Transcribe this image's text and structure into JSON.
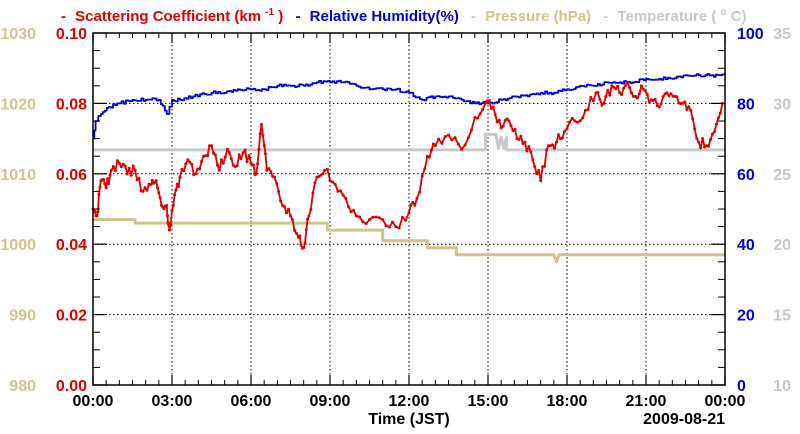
{
  "chart_data": {
    "type": "line",
    "date_label": "2009-08-21",
    "xlabel": "Time (JST)",
    "x_ticks": [
      "00:00",
      "03:00",
      "06:00",
      "09:00",
      "12:00",
      "15:00",
      "18:00",
      "21:00",
      "00:00"
    ],
    "x_unit": "hours",
    "x_range": [
      0,
      24
    ],
    "legend": [
      {
        "prefix": "-",
        "text_pre": "Scattering Coefficient (km",
        "sup": "-1",
        "text_post": ")",
        "color": "#e00000"
      },
      {
        "prefix": "-",
        "text_pre": "Relative Humidity(%)",
        "sup": "",
        "text_post": "",
        "color": "#0000e0"
      },
      {
        "prefix": "-",
        "text_pre": "Pressure (hPa)",
        "sup": "",
        "text_post": "",
        "color": "#cfc48c"
      },
      {
        "prefix": "-",
        "text_pre": "Temperature (",
        "sup": "o",
        "text_post": "C)",
        "color": "#c8c8c8"
      }
    ],
    "axes": {
      "pressure": {
        "color": "#cfc48c",
        "range": [
          980,
          1030
        ],
        "ticks": [
          "980",
          "990",
          "1000",
          "1010",
          "1020",
          "1030"
        ]
      },
      "scattering": {
        "color": "#e00000",
        "range": [
          0,
          0.1
        ],
        "ticks": [
          "0.00",
          "0.02",
          "0.04",
          "0.06",
          "0.08",
          "0.10"
        ]
      },
      "humidity": {
        "color": "#0000e0",
        "range": [
          0,
          100
        ],
        "ticks": [
          "0",
          "20",
          "40",
          "60",
          "80",
          "100"
        ]
      },
      "temperature": {
        "color": "#c8c8c8",
        "range": [
          10,
          35
        ],
        "ticks": [
          "10",
          "15",
          "20",
          "25",
          "30",
          "35"
        ]
      }
    },
    "series": [
      {
        "name": "Scattering Coefficient",
        "axis": "scattering",
        "color": "#e00000",
        "markers": true,
        "x": [
          0,
          0.15,
          0.3,
          0.5,
          0.7,
          1.0,
          1.3,
          1.6,
          1.9,
          2.2,
          2.4,
          2.6,
          2.8,
          2.9,
          3.1,
          3.3,
          3.6,
          3.9,
          4.2,
          4.5,
          4.8,
          5.1,
          5.4,
          5.7,
          6.0,
          6.2,
          6.4,
          6.6,
          6.9,
          7.2,
          7.5,
          7.8,
          8.0,
          8.2,
          8.5,
          8.8,
          9.2,
          9.6,
          10.0,
          10.5,
          11.0,
          11.5,
          12.0,
          12.3,
          12.7,
          13.0,
          13.5,
          14.0,
          14.5,
          14.9,
          15.2,
          15.5,
          15.8,
          16.1,
          16.4,
          16.7,
          17.0,
          17.3,
          17.6,
          17.9,
          18.3,
          18.7,
          19.1,
          19.4,
          19.7,
          20.0,
          20.3,
          20.6,
          20.9,
          21.2,
          21.5,
          21.8,
          22.1,
          22.4,
          22.7,
          23.0,
          23.3,
          23.6,
          23.9
        ],
        "y": [
          0.05,
          0.048,
          0.058,
          0.056,
          0.061,
          0.063,
          0.06,
          0.061,
          0.055,
          0.057,
          0.058,
          0.051,
          0.051,
          0.044,
          0.054,
          0.059,
          0.064,
          0.06,
          0.065,
          0.068,
          0.061,
          0.067,
          0.062,
          0.066,
          0.063,
          0.06,
          0.074,
          0.061,
          0.059,
          0.051,
          0.048,
          0.042,
          0.039,
          0.048,
          0.059,
          0.061,
          0.057,
          0.053,
          0.048,
          0.047,
          0.047,
          0.045,
          0.049,
          0.053,
          0.065,
          0.068,
          0.071,
          0.067,
          0.076,
          0.08,
          0.079,
          0.073,
          0.075,
          0.07,
          0.069,
          0.064,
          0.058,
          0.068,
          0.069,
          0.072,
          0.075,
          0.078,
          0.083,
          0.08,
          0.085,
          0.083,
          0.086,
          0.082,
          0.084,
          0.081,
          0.079,
          0.083,
          0.082,
          0.08,
          0.078,
          0.069,
          0.068,
          0.072,
          0.08
        ]
      },
      {
        "name": "Relative Humidity",
        "axis": "humidity",
        "color": "#0000e0",
        "markers": false,
        "x": [
          0,
          0.1,
          0.3,
          0.6,
          1.0,
          1.5,
          2.0,
          2.5,
          2.8,
          3.0,
          3.3,
          3.8,
          4.5,
          5.0,
          5.5,
          6.0,
          6.5,
          7.0,
          7.5,
          8.0,
          8.5,
          9.0,
          9.5,
          10.0,
          10.5,
          11.0,
          11.5,
          12.0,
          12.5,
          13.0,
          13.5,
          14.0,
          14.5,
          15.0,
          15.5,
          16.0,
          16.5,
          17.0,
          17.5,
          18.0,
          18.5,
          19.0,
          19.5,
          20.0,
          20.5,
          21.0,
          21.5,
          22.0,
          22.5,
          23.0,
          23.5,
          23.8,
          24.0
        ],
        "y": [
          70,
          75,
          77,
          79,
          80,
          81,
          81,
          81,
          77,
          81,
          81,
          82,
          83,
          83,
          84,
          84,
          84,
          85,
          85,
          85,
          86,
          86,
          86,
          85,
          84,
          84,
          84,
          83,
          81,
          82,
          82,
          81,
          80,
          80,
          81,
          82,
          82,
          83,
          83,
          84,
          85,
          85,
          86,
          86,
          86,
          87,
          87,
          87,
          88,
          88,
          88,
          88,
          88
        ]
      },
      {
        "name": "Pressure",
        "axis": "pressure",
        "color": "#cfc48c",
        "markers": false,
        "x": [
          0,
          1.6,
          1.6,
          3.5,
          6.0,
          8.9,
          8.9,
          11.0,
          11.0,
          12.7,
          12.7,
          13.8,
          13.8,
          17.5,
          17.6,
          17.7,
          24.0
        ],
        "y": [
          1003.5,
          1003.5,
          1003.0,
          1003.0,
          1003.0,
          1003.0,
          1002.0,
          1002.0,
          1000.5,
          1000.5,
          999.5,
          999.5,
          998.5,
          998.5,
          997.5,
          998.5,
          998.5
        ]
      },
      {
        "name": "Temperature",
        "axis": "temperature",
        "color": "#c8c8c8",
        "markers": false,
        "x": [
          0,
          14.9,
          14.9,
          15.3,
          15.4,
          15.5,
          15.6,
          15.7,
          15.7,
          24.0
        ],
        "y": [
          26.7,
          26.7,
          27.8,
          27.8,
          26.8,
          27.6,
          26.8,
          27.6,
          26.7,
          26.7
        ]
      }
    ]
  }
}
